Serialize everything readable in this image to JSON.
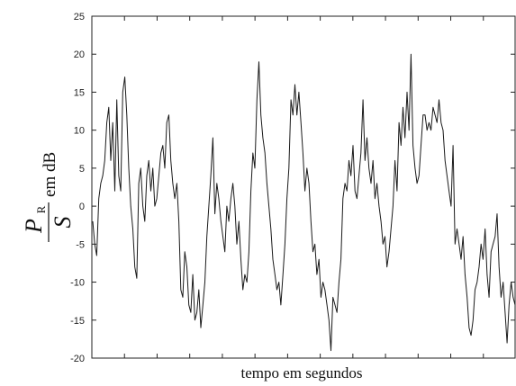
{
  "chart_data": {
    "type": "line",
    "title": "",
    "xlabel": "tempo em segundos",
    "ylabel": {
      "numerator": "P",
      "subscript": "R",
      "denominator": "S",
      "unit": "em dB"
    },
    "ylim": [
      -20,
      25
    ],
    "yticks": [
      "25",
      "20",
      "15",
      "10",
      "5",
      "0",
      "-5",
      "-10",
      "-15",
      "-20"
    ],
    "x_tick_count": 12,
    "line_color": "#1a1a1a",
    "series": [
      {
        "values": [
          -2,
          -5,
          -6.5,
          1,
          3,
          4,
          6,
          11,
          13,
          6,
          11,
          2,
          14,
          4,
          2,
          15,
          17,
          12,
          5,
          0,
          -3,
          -8,
          -9.5,
          3,
          5,
          0,
          -2,
          4,
          6,
          2,
          5,
          0,
          1,
          4,
          7,
          8,
          5,
          11,
          12,
          6,
          3,
          1,
          3,
          -2,
          -11,
          -12,
          -6,
          -8,
          -13,
          -14,
          -9,
          -15,
          -14,
          -11,
          -16,
          -13,
          -10,
          -4,
          0,
          4,
          9,
          -1,
          3,
          1,
          -2,
          -4,
          -6,
          0,
          -2,
          1,
          3,
          0,
          -5,
          -2,
          -7,
          -11,
          -9,
          -10,
          -6,
          2,
          7,
          5,
          14,
          19,
          12,
          9,
          7,
          3,
          0,
          -3,
          -7,
          -9,
          -11,
          -10,
          -13,
          -9,
          -5,
          1,
          5,
          14,
          12,
          16,
          12,
          15,
          11,
          7,
          2,
          5,
          3,
          -2,
          -6,
          -5,
          -9,
          -7,
          -12,
          -10,
          -11,
          -13,
          -15,
          -19,
          -12,
          -13,
          -14,
          -10,
          -7,
          1,
          3,
          2,
          6,
          4,
          8,
          2,
          1,
          4,
          7,
          14,
          6,
          9,
          5,
          3,
          6,
          1,
          3,
          0,
          -2,
          -5,
          -4,
          -8,
          -6,
          -3,
          0,
          6,
          2,
          11,
          8,
          13,
          9,
          15,
          10,
          20,
          8,
          5,
          3,
          4,
          8,
          12,
          12,
          10,
          11,
          10,
          13,
          12,
          11,
          14,
          11,
          10,
          6,
          4,
          2,
          0,
          8,
          -5,
          -3,
          -5,
          -7,
          -4,
          -9,
          -12,
          -16,
          -17,
          -15,
          -11,
          -10,
          -8,
          -5,
          -7,
          -3,
          -9,
          -12,
          -6,
          -5,
          -4,
          -1,
          -8,
          -12,
          -10,
          -14,
          -18,
          -13,
          -10,
          -12,
          -13
        ]
      }
    ]
  }
}
